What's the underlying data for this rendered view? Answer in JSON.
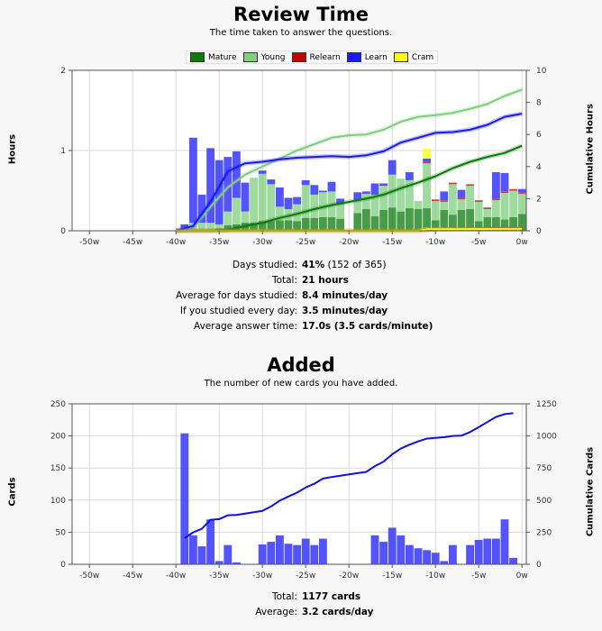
{
  "review": {
    "title": "Review Time",
    "subtitle": "The time taken to answer the questions.",
    "ylabel_left": "Hours",
    "ylabel_right": "Cumulative Hours",
    "stats": [
      {
        "label": "Days studied:",
        "value": "41%",
        "rest": " (152 of 365)"
      },
      {
        "label": "Total:",
        "value": "21 hours",
        "rest": ""
      },
      {
        "label": "Average for days studied:",
        "value": "8.4 minutes/day",
        "rest": ""
      },
      {
        "label": "If you studied every day:",
        "value": "3.5 minutes/day",
        "rest": ""
      },
      {
        "label": "Average answer time:",
        "value": "17.0s (3.5 cards/minute)",
        "rest": ""
      }
    ]
  },
  "added": {
    "title": "Added",
    "subtitle": "The number of new cards you have added.",
    "ylabel_left": "Cards",
    "ylabel_right": "Cumulative Cards",
    "stats": [
      {
        "label": "Total:",
        "value": "1177 cards",
        "rest": ""
      },
      {
        "label": "Average:",
        "value": "3.2 cards/day",
        "rest": ""
      }
    ]
  },
  "colors": {
    "mature": "#0b7a0b",
    "young": "#7fcf7f",
    "relearn": "#c80000",
    "learn": "#1a1aff",
    "cram": "#ffff00",
    "bar_added": "#4a4aff",
    "cum_line": "#1010e0",
    "grid": "#d8d8d8"
  },
  "chart_data": [
    {
      "type": "bar",
      "stacked": true,
      "title": "Review Time",
      "xlabel": "",
      "ylabel": "Hours",
      "ylabel_right": "Cumulative Hours",
      "xlim": [
        -52,
        0.5
      ],
      "ylim": [
        0,
        2
      ],
      "ylim_right": [
        0,
        10
      ],
      "x_ticks": [
        -50,
        -45,
        -40,
        -35,
        -30,
        -25,
        -20,
        -15,
        -10,
        -5,
        0
      ],
      "x_tick_labels": [
        "-50w",
        "-45w",
        "-40w",
        "-35w",
        "-30w",
        "-25w",
        "-20w",
        "-15w",
        "-10w",
        "-5w",
        "0w"
      ],
      "y_ticks": [
        0,
        1,
        2
      ],
      "y_ticks_right": [
        0,
        2,
        4,
        6,
        8,
        10
      ],
      "grid": true,
      "legend": [
        "Mature",
        "Young",
        "Relearn",
        "Learn",
        "Cram"
      ],
      "legend_position": "top",
      "x": [
        -39,
        -38,
        -37,
        -36,
        -35,
        -34,
        -33,
        -32,
        -31,
        -30,
        -29,
        -28,
        -27,
        -26,
        -25,
        -24,
        -23,
        -22,
        -21,
        -19,
        -18,
        -17,
        -16,
        -15,
        -14,
        -13,
        -12,
        -11,
        -10,
        -9,
        -8,
        -7,
        -6,
        -5,
        -4,
        -3,
        -2,
        -1,
        0
      ],
      "series": [
        {
          "name": "Mature",
          "values": [
            0,
            0,
            0,
            0,
            0.03,
            0.07,
            0.08,
            0.1,
            0.1,
            0.12,
            0.12,
            0.13,
            0.13,
            0.12,
            0.16,
            0.16,
            0.17,
            0.17,
            0.15,
            0.22,
            0.27,
            0.18,
            0.26,
            0.29,
            0.24,
            0.28,
            0.27,
            0.28,
            0.13,
            0.26,
            0.2,
            0.26,
            0.27,
            0.12,
            0.17,
            0.17,
            0.14,
            0.17,
            0.21
          ]
        },
        {
          "name": "Young",
          "values": [
            0.01,
            0.1,
            0.1,
            0.1,
            0.05,
            0.17,
            0.33,
            0.14,
            0.56,
            0.59,
            0.46,
            0.17,
            0.14,
            0.21,
            0.41,
            0.29,
            0.31,
            0.32,
            0.18,
            0.16,
            0.19,
            0.27,
            0.3,
            0.41,
            0.41,
            0.35,
            0.1,
            0.56,
            0.24,
            0.1,
            0.38,
            0.13,
            0.29,
            0.24,
            0.1,
            0.21,
            0.33,
            0.33,
            0.25
          ]
        },
        {
          "name": "Relearn",
          "values": [
            0,
            0,
            0,
            0,
            0,
            0,
            0,
            0,
            0,
            0,
            0,
            0,
            0,
            0,
            0,
            0,
            0,
            0,
            0,
            0,
            0,
            0,
            0,
            0,
            0,
            0,
            0,
            0.02,
            0.02,
            0.02,
            0.02,
            0.02,
            0.02,
            0.02,
            0.02,
            0.02,
            0.02,
            0.02,
            0.02
          ]
        },
        {
          "name": "Learn",
          "values": [
            0.07,
            1.06,
            0.35,
            0.93,
            0.8,
            0.68,
            0.58,
            0.36,
            0,
            0.04,
            0.06,
            0.24,
            0.14,
            0.09,
            0.06,
            0.12,
            0.02,
            0.12,
            0.07,
            0.1,
            0.03,
            0.14,
            0.03,
            0.18,
            0,
            0.1,
            0,
            0.04,
            0,
            0.11,
            0,
            0.1,
            0,
            0,
            0,
            0.33,
            0.23,
            0,
            0.04
          ]
        },
        {
          "name": "Cram",
          "values": [
            0,
            0,
            0,
            0,
            0,
            0,
            0,
            0,
            0,
            0,
            0,
            0,
            0,
            0,
            0,
            0,
            0,
            0,
            0,
            0,
            0,
            0,
            0,
            0,
            0,
            0,
            0,
            0.12,
            0,
            0,
            0,
            0,
            0,
            0,
            0,
            0,
            0,
            0,
            0
          ]
        }
      ],
      "cumulative": {
        "name": "Cumulative Hours",
        "axis": "right",
        "series": [
          {
            "name": "Young",
            "x": [
              -40,
              -38,
              -36,
              -34,
              -32,
              -30,
              -28,
              -26,
              -24,
              -22,
              -20,
              -18,
              -16,
              -14,
              -12,
              -10,
              -8,
              -6,
              -4,
              -2,
              0
            ],
            "values": [
              0,
              0.2,
              1.5,
              2.7,
              3.5,
              4.0,
              4.5,
              5.0,
              5.4,
              5.8,
              5.95,
              6.0,
              6.3,
              6.8,
              7.1,
              7.2,
              7.35,
              7.6,
              7.9,
              8.4,
              8.8
            ]
          },
          {
            "name": "Learn",
            "x": [
              -40,
              -38,
              -36,
              -34,
              -32,
              -30,
              -28,
              -26,
              -24,
              -22,
              -20,
              -18,
              -16,
              -14,
              -12,
              -10,
              -8,
              -6,
              -4,
              -2,
              0
            ],
            "values": [
              0,
              0.3,
              1.8,
              3.7,
              4.2,
              4.3,
              4.45,
              4.55,
              4.6,
              4.65,
              4.6,
              4.7,
              4.95,
              5.5,
              5.8,
              6.1,
              6.15,
              6.3,
              6.6,
              7.1,
              7.3
            ]
          },
          {
            "name": "Mature",
            "x": [
              -40,
              -36,
              -34,
              -32,
              -30,
              -28,
              -26,
              -24,
              -22,
              -20,
              -18,
              -16,
              -14,
              -12,
              -10,
              -8,
              -6,
              -4,
              -2,
              0
            ],
            "values": [
              0,
              0,
              0.05,
              0.3,
              0.5,
              0.8,
              1.05,
              1.35,
              1.6,
              1.8,
              2.0,
              2.25,
              2.65,
              3.0,
              3.4,
              3.9,
              4.3,
              4.6,
              4.85,
              5.3
            ]
          },
          {
            "name": "Relearn",
            "x": [
              -40,
              -12,
              -10,
              0
            ],
            "values": [
              0,
              0,
              0.1,
              0.15
            ]
          },
          {
            "name": "Cram",
            "x": [
              -40,
              -12,
              -11,
              0
            ],
            "values": [
              0,
              0,
              0.1,
              0.12
            ]
          }
        ]
      }
    },
    {
      "type": "bar",
      "title": "Added",
      "xlabel": "",
      "ylabel": "Cards",
      "ylabel_right": "Cumulative Cards",
      "xlim": [
        -52,
        0.5
      ],
      "ylim": [
        0,
        250
      ],
      "ylim_right": [
        0,
        1250
      ],
      "x_ticks": [
        -50,
        -45,
        -40,
        -35,
        -30,
        -25,
        -20,
        -15,
        -10,
        -5,
        0
      ],
      "x_tick_labels": [
        "-50w",
        "-45w",
        "-40w",
        "-35w",
        "-30w",
        "-25w",
        "-20w",
        "-15w",
        "-10w",
        "-5w",
        "0w"
      ],
      "y_ticks": [
        0,
        50,
        100,
        150,
        200,
        250
      ],
      "y_ticks_right": [
        0,
        250,
        500,
        750,
        1000,
        1250
      ],
      "grid": true,
      "x": [
        -39,
        -38,
        -37,
        -36,
        -35,
        -34,
        -33,
        -30,
        -29,
        -28,
        -27,
        -26,
        -25,
        -24,
        -23,
        -17,
        -16,
        -15,
        -14,
        -13,
        -12,
        -11,
        -10,
        -9,
        -8,
        -6,
        -5,
        -4,
        -3,
        -2,
        -1
      ],
      "series": [
        {
          "name": "Cards",
          "values": [
            204,
            45,
            28,
            70,
            5,
            30,
            3,
            31,
            35,
            45,
            32,
            30,
            40,
            30,
            40,
            45,
            35,
            57,
            45,
            30,
            25,
            22,
            18,
            5,
            30,
            30,
            38,
            40,
            40,
            70,
            10
          ]
        }
      ],
      "cumulative": {
        "name": "Cumulative Cards",
        "axis": "right",
        "x": [
          -39,
          -38,
          -37,
          -36,
          -35,
          -34,
          -33,
          -32,
          -31,
          -30,
          -29,
          -28,
          -27,
          -26,
          -25,
          -24,
          -23,
          -22,
          -21,
          -20,
          -19,
          -18,
          -17,
          -16,
          -15,
          -14,
          -13,
          -12,
          -11,
          -10,
          -9,
          -8,
          -7,
          -6,
          -5,
          -4,
          -3,
          -2,
          -1
        ],
        "values": [
          204,
          249,
          277,
          347,
          352,
          382,
          385,
          395,
          405,
          416,
          451,
          496,
          528,
          558,
          598,
          628,
          668,
          680,
          690,
          700,
          710,
          720,
          765,
          800,
          857,
          902,
          932,
          957,
          979,
          985,
          990,
          1000,
          1002,
          1030,
          1068,
          1108,
          1148,
          1170,
          1177
        ]
      }
    }
  ]
}
